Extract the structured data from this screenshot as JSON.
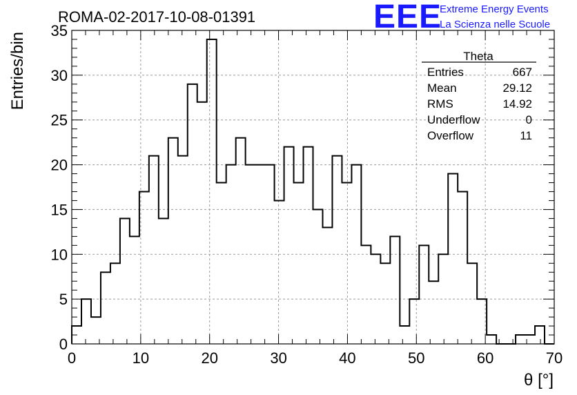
{
  "title": "ROMA-02-2017-10-08-01391",
  "logo": {
    "mark": "EEE",
    "line1": "Extreme Energy Events",
    "line2": "La Scienza nelle Scuole",
    "color": "#1a1aff"
  },
  "stats": {
    "title": "Theta",
    "rows": [
      {
        "label": "Entries",
        "value": "667"
      },
      {
        "label": "Mean",
        "value": "29.12"
      },
      {
        "label": "RMS",
        "value": "14.92"
      },
      {
        "label": "Underflow",
        "value": "0"
      },
      {
        "label": "Overflow",
        "value": "11"
      }
    ]
  },
  "chart_data": {
    "type": "bar",
    "style": "step-histogram",
    "xlabel": "θ [°]",
    "ylabel": "Entries/bin",
    "xlim": [
      0,
      70
    ],
    "ylim": [
      0,
      35
    ],
    "xticks": [
      0,
      10,
      20,
      30,
      40,
      50,
      60,
      70
    ],
    "yticks": [
      0,
      5,
      10,
      15,
      20,
      25,
      30,
      35
    ],
    "grid": true,
    "bin_width": 1.4,
    "x_start": 0,
    "values": [
      2,
      5,
      3,
      8,
      9,
      14,
      12,
      17,
      21,
      14,
      23,
      21,
      29,
      27,
      34,
      18,
      20,
      23,
      20,
      20,
      20,
      16,
      22,
      18,
      22,
      15,
      13,
      21,
      18,
      20,
      11,
      10,
      9,
      12,
      2,
      5,
      11,
      7,
      10,
      19,
      17,
      9,
      5,
      1,
      0,
      0,
      1,
      1,
      2,
      0
    ]
  }
}
